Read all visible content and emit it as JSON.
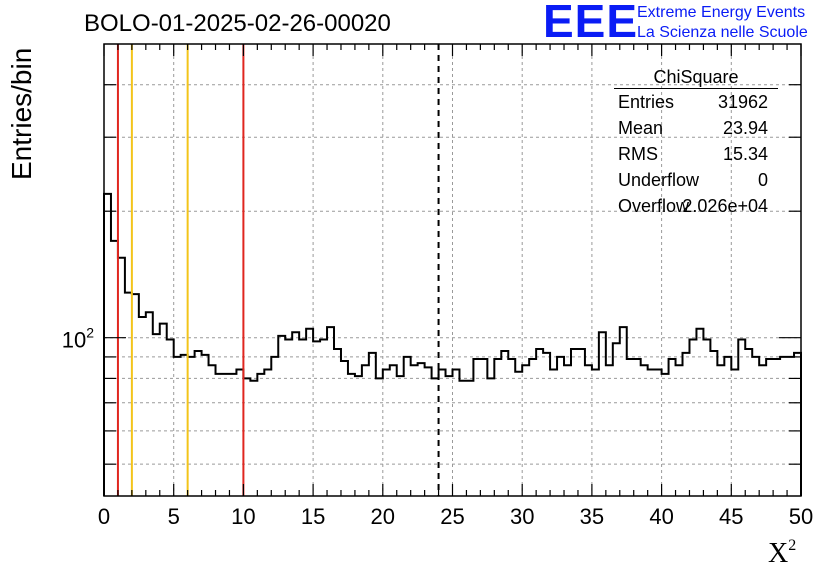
{
  "chart_data": {
    "type": "histogram",
    "title": "BOLO-01-2025-02-26-00020",
    "xlabel": "X",
    "xlabel_superscript": "2",
    "ylabel": "Entries/bin",
    "xlim": [
      0,
      50
    ],
    "ylim": [
      42,
      500
    ],
    "yscale": "log",
    "grid": true,
    "x_ticks": [
      "0",
      "5",
      "10",
      "15",
      "20",
      "25",
      "30",
      "35",
      "40",
      "45",
      "50"
    ],
    "y_tick_label": {
      "base": "10",
      "exponent": "2"
    },
    "bin_width": 0.5,
    "values": [
      220,
      170,
      155,
      128,
      127,
      112,
      115,
      102,
      108,
      99,
      90,
      91,
      90,
      93,
      91,
      86,
      82,
      82,
      82,
      84,
      80,
      79,
      82,
      84,
      90,
      101,
      99,
      103,
      99,
      105,
      98,
      99,
      106,
      94,
      88,
      82,
      81,
      86,
      92,
      80,
      84,
      86,
      81,
      90,
      86,
      87,
      85,
      80,
      84,
      81,
      84,
      79,
      79,
      89,
      89,
      80,
      89,
      93,
      89,
      83,
      86,
      89,
      94,
      92,
      84,
      90,
      86,
      94,
      94,
      86,
      84,
      103,
      86,
      97,
      106,
      89,
      89,
      86,
      84,
      84,
      82,
      89,
      86,
      92,
      99,
      105,
      99,
      93,
      86,
      90,
      84,
      99,
      94,
      90,
      86,
      89,
      89,
      90,
      90,
      92
    ],
    "vertical_lines": [
      {
        "x": 1,
        "color": "#e0261f",
        "style": "solid"
      },
      {
        "x": 2,
        "color": "#f3c41a",
        "style": "solid"
      },
      {
        "x": 6,
        "color": "#f3c41a",
        "style": "solid"
      },
      {
        "x": 10,
        "color": "#e0261f",
        "style": "solid"
      },
      {
        "x": 24,
        "color": "#000000",
        "style": "dashed"
      }
    ],
    "stats_box": {
      "title": "ChiSquare",
      "entries": [
        {
          "label": "Entries",
          "value": "31962"
        },
        {
          "label": "Mean",
          "value": "23.94"
        },
        {
          "label": "RMS",
          "value": "15.34"
        },
        {
          "label": "Underflow",
          "value": "0"
        },
        {
          "label": "Overflow",
          "value": "2.026e+04"
        }
      ]
    }
  },
  "logo": {
    "mark": "EEE",
    "line1": "Extreme Energy Events",
    "line2": "La Scienza nelle Scuole",
    "color": "#0a1cf5"
  }
}
